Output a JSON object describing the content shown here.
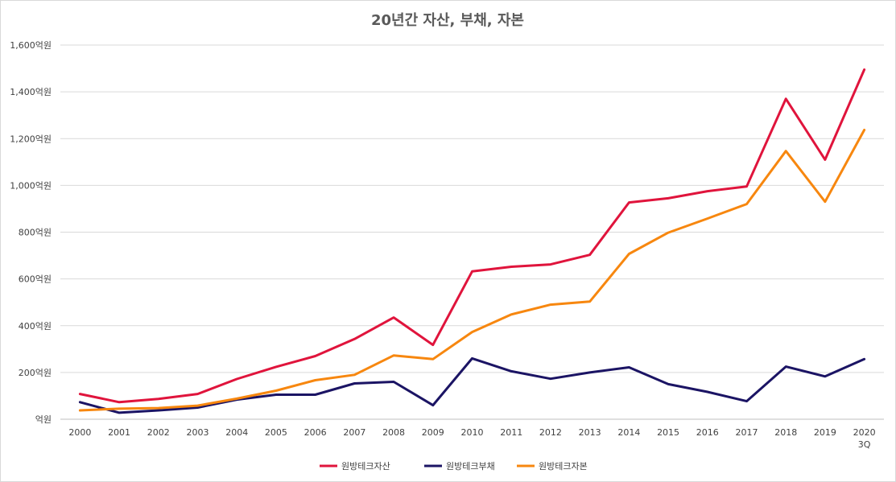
{
  "chart_data": {
    "type": "line",
    "title": "20년간 자산, 부채, 자본",
    "categories": [
      "2000",
      "2001",
      "2002",
      "2003",
      "2004",
      "2005",
      "2006",
      "2007",
      "2008",
      "2009",
      "2010",
      "2011",
      "2012",
      "2013",
      "2014",
      "2015",
      "2016",
      "2017",
      "2018",
      "2019",
      "2020\n3Q"
    ],
    "ylim": [
      0,
      1600
    ],
    "yticks": [
      0,
      200,
      400,
      600,
      800,
      1000,
      1200,
      1400,
      1600
    ],
    "ytick_labels": [
      "억원",
      "200억원",
      "400억원",
      "600억원",
      "800억원",
      "1,000억원",
      "1,200억원",
      "1,400억원",
      "1,600억원"
    ],
    "grid": true,
    "legend_position": "bottom",
    "series": [
      {
        "name": "원방테크자산",
        "color": "#e0143c",
        "values": [
          108,
          73,
          87,
          108,
          172,
          224,
          270,
          343,
          435,
          318,
          632,
          652,
          662,
          703,
          927,
          945,
          975,
          995,
          1370,
          1110,
          1495
        ]
      },
      {
        "name": "원방테크부채",
        "color": "#1b1464",
        "values": [
          73,
          28,
          38,
          50,
          84,
          105,
          105,
          153,
          160,
          60,
          260,
          205,
          173,
          200,
          222,
          150,
          117,
          77,
          225,
          183,
          257
        ]
      },
      {
        "name": "원방테크자본",
        "color": "#f7870f",
        "values": [
          38,
          45,
          48,
          58,
          88,
          122,
          167,
          190,
          273,
          257,
          373,
          448,
          490,
          503,
          707,
          798,
          858,
          920,
          1147,
          930,
          1237
        ]
      }
    ]
  }
}
